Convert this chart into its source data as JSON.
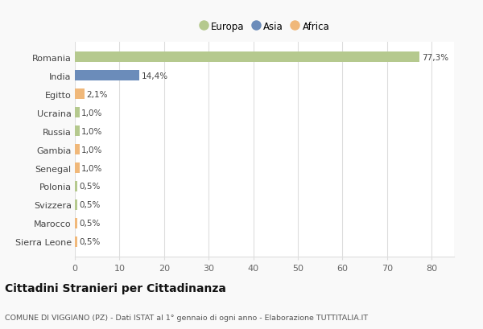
{
  "countries": [
    "Romania",
    "India",
    "Egitto",
    "Ucraina",
    "Russia",
    "Gambia",
    "Senegal",
    "Polonia",
    "Svizzera",
    "Marocco",
    "Sierra Leone"
  ],
  "values": [
    77.3,
    14.4,
    2.1,
    1.0,
    1.0,
    1.0,
    1.0,
    0.5,
    0.5,
    0.5,
    0.5
  ],
  "labels": [
    "77,3%",
    "14,4%",
    "2,1%",
    "1,0%",
    "1,0%",
    "1,0%",
    "1,0%",
    "0,5%",
    "0,5%",
    "0,5%",
    "0,5%"
  ],
  "colors": [
    "#b5c98e",
    "#6b8cba",
    "#f0b87a",
    "#b5c98e",
    "#b5c98e",
    "#f0b87a",
    "#f0b87a",
    "#b5c98e",
    "#b5c98e",
    "#f0b87a",
    "#f0b87a"
  ],
  "legend_labels": [
    "Europa",
    "Asia",
    "Africa"
  ],
  "legend_colors": [
    "#b5c98e",
    "#6b8cba",
    "#f0b87a"
  ],
  "title": "Cittadini Stranieri per Cittadinanza",
  "subtitle": "COMUNE DI VIGGIANO (PZ) - Dati ISTAT al 1° gennaio di ogni anno - Elaborazione TUTTITALIA.IT",
  "xlim": [
    0,
    85
  ],
  "xticks": [
    0,
    10,
    20,
    30,
    40,
    50,
    60,
    70,
    80
  ],
  "background_color": "#f9f9f9",
  "plot_bg_color": "#ffffff",
  "grid_color": "#dddddd"
}
